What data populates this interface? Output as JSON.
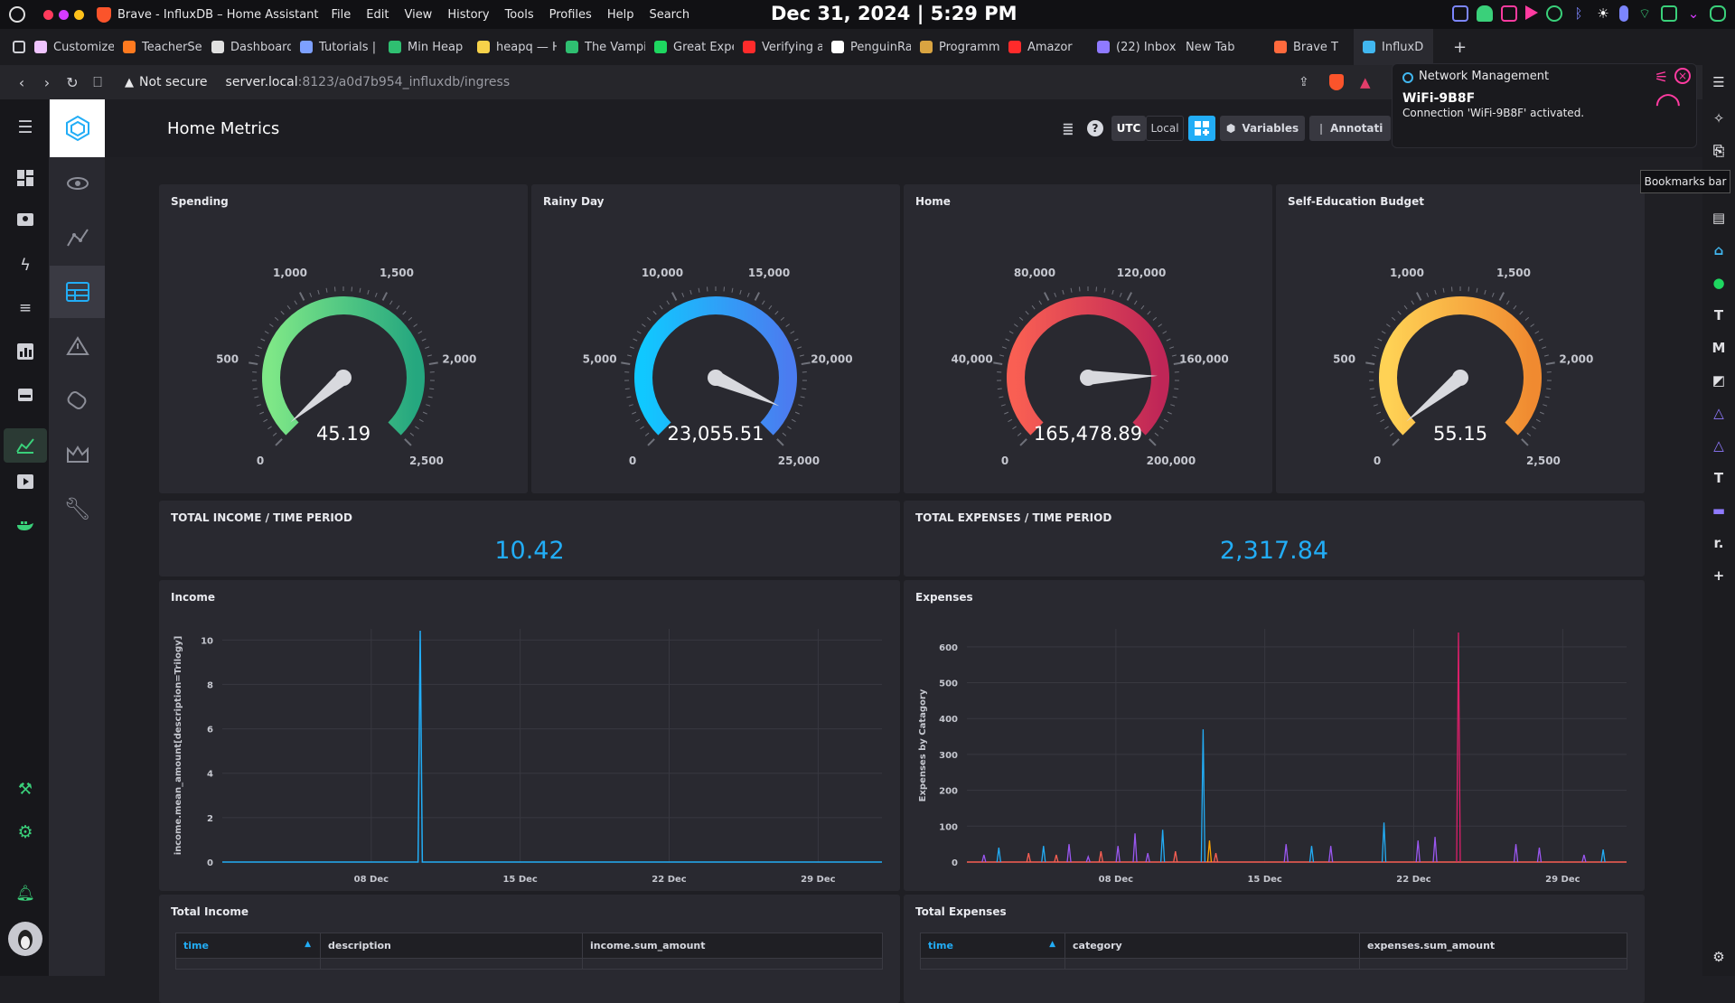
{
  "os": {
    "window_title": "Brave - InfluxDB – Home Assistant",
    "menu": [
      "File",
      "Edit",
      "View",
      "History",
      "Tools",
      "Profiles",
      "Help",
      "Search"
    ],
    "clock": "Dec 31, 2024 | 5:29 PM"
  },
  "tabs": [
    {
      "label": "Customize",
      "color": "#f0c4ff"
    },
    {
      "label": "TeacherSe",
      "color": "#ff7a1f"
    },
    {
      "label": "Dashboard",
      "color": "#e0e0e0"
    },
    {
      "label": "Tutorials |",
      "color": "#7da0ff"
    },
    {
      "label": "Min Heap",
      "color": "#2fbf71"
    },
    {
      "label": "heapq — H",
      "color": "#f7d24a"
    },
    {
      "label": "The Vampi",
      "color": "#2fbf71"
    },
    {
      "label": "Great Expe",
      "color": "#1ed760"
    },
    {
      "label": "Verifying a",
      "color": "#ff2b2b"
    },
    {
      "label": "PenguinRa",
      "color": "#ffffff"
    },
    {
      "label": "Programm",
      "color": "#d9a441"
    },
    {
      "label": "Amazor",
      "color": "#ff2b2b"
    },
    {
      "label": "(22) Inbox",
      "color": "#8f7aff"
    },
    {
      "label": "New Tab",
      "color": ""
    },
    {
      "label": "Brave T",
      "color": "#ff6a3d"
    },
    {
      "label": "InfluxD",
      "color": "#41b7f0"
    }
  ],
  "address": {
    "security": "Not secure",
    "host": "server.local",
    "path": ":8123/a0d7b954_influxdb/ingress"
  },
  "notification": {
    "app": "Network Management",
    "title": "WiFi-9B8F",
    "body": "Connection 'WiFi-9B8F' activated."
  },
  "tooltip": "Bookmarks bar",
  "dashboard": {
    "title": "Home Metrics",
    "buttons": {
      "utc": "UTC",
      "local": "Local",
      "variables": "Variables",
      "annotations": "Annotati"
    }
  },
  "gauges": [
    {
      "title": "Spending",
      "value_text": "45.19",
      "value": 45.19,
      "min": 0,
      "max": 2500,
      "ticks": [
        "0",
        "500",
        "1,000",
        "1,500",
        "2,000",
        "2,500"
      ],
      "colors": [
        "#7ee787",
        "#25a77f"
      ]
    },
    {
      "title": "Rainy Day",
      "value_text": "23,055.51",
      "value": 23055.51,
      "min": 0,
      "max": 25000,
      "ticks": [
        "0",
        "5,000",
        "10,000",
        "15,000",
        "20,000",
        "25,000"
      ],
      "colors": [
        "#10c8ff",
        "#4b7cf0"
      ]
    },
    {
      "title": "Home",
      "value_text": "165,478.89",
      "value": 165478.89,
      "min": 0,
      "max": 200000,
      "ticks": [
        "0",
        "40,000",
        "80,000",
        "120,000",
        "160,000",
        "200,000"
      ],
      "colors": [
        "#f95f53",
        "#bf2657"
      ]
    },
    {
      "title": "Self-Education Budget",
      "value_text": "55.15",
      "value": 55.15,
      "min": 0,
      "max": 2500,
      "ticks": [
        "0",
        "500",
        "1,000",
        "1,500",
        "2,000",
        "2,500"
      ],
      "colors": [
        "#ffd255",
        "#f08a30"
      ]
    }
  ],
  "singlestats": [
    {
      "title": "TOTAL INCOME / TIME PERIOD",
      "value": "10.42"
    },
    {
      "title": "TOTAL EXPENSES / TIME PERIOD",
      "value": "2,317.84"
    }
  ],
  "chart_data": [
    {
      "type": "line",
      "title": "Income",
      "ylabel": "income.mean_amount[description=Trilogy]",
      "xlabel": "",
      "x_ticks": [
        "08 Dec",
        "15 Dec",
        "22 Dec",
        "29 Dec"
      ],
      "y_ticks": [
        "0",
        "2",
        "4",
        "6",
        "8",
        "10"
      ],
      "ylim": [
        0,
        10.5
      ],
      "xlim_days": [
        1,
        32
      ],
      "series": [
        {
          "color": "#22adf6",
          "points": [
            [
              1,
              0
            ],
            [
              10.2,
              0
            ],
            [
              10.3,
              10.42
            ],
            [
              10.4,
              0
            ],
            [
              32,
              0
            ]
          ]
        }
      ]
    },
    {
      "type": "line",
      "title": "Expenses",
      "ylabel": "Expenses by Catagory",
      "xlabel": "",
      "x_ticks": [
        "08 Dec",
        "15 Dec",
        "22 Dec",
        "29 Dec"
      ],
      "y_ticks": [
        "0",
        "100",
        "200",
        "300",
        "400",
        "500",
        "600"
      ],
      "ylim": [
        0,
        650
      ],
      "xlim_days": [
        1,
        32
      ],
      "spikes": [
        {
          "day": 1.8,
          "value": 20,
          "color": "#9a57f0"
        },
        {
          "day": 2.5,
          "value": 40,
          "color": "#22adf6"
        },
        {
          "day": 3.9,
          "value": 25,
          "color": "#f95f53"
        },
        {
          "day": 4.6,
          "value": 45,
          "color": "#22adf6"
        },
        {
          "day": 5.2,
          "value": 20,
          "color": "#f95f53"
        },
        {
          "day": 5.8,
          "value": 50,
          "color": "#9a57f0"
        },
        {
          "day": 6.7,
          "value": 15,
          "color": "#9a57f0"
        },
        {
          "day": 7.3,
          "value": 30,
          "color": "#f95f53"
        },
        {
          "day": 8.1,
          "value": 45,
          "color": "#9a57f0"
        },
        {
          "day": 8.9,
          "value": 80,
          "color": "#9a57f0"
        },
        {
          "day": 9.5,
          "value": 25,
          "color": "#9a57f0"
        },
        {
          "day": 10.2,
          "value": 90,
          "color": "#22adf6"
        },
        {
          "day": 10.8,
          "value": 30,
          "color": "#f95f53"
        },
        {
          "day": 12.1,
          "value": 370,
          "color": "#22adf6"
        },
        {
          "day": 12.4,
          "value": 60,
          "color": "#ffa500"
        },
        {
          "day": 12.7,
          "value": 25,
          "color": "#f95f53"
        },
        {
          "day": 16.0,
          "value": 50,
          "color": "#9a57f0"
        },
        {
          "day": 17.2,
          "value": 45,
          "color": "#22adf6"
        },
        {
          "day": 18.1,
          "value": 45,
          "color": "#9a57f0"
        },
        {
          "day": 20.6,
          "value": 110,
          "color": "#22adf6"
        },
        {
          "day": 22.2,
          "value": 60,
          "color": "#9a57f0"
        },
        {
          "day": 23.0,
          "value": 70,
          "color": "#9a57f0"
        },
        {
          "day": 24.1,
          "value": 640,
          "color": "#dc1f6a"
        },
        {
          "day": 26.8,
          "value": 50,
          "color": "#9a57f0"
        },
        {
          "day": 27.9,
          "value": 40,
          "color": "#9a57f0"
        },
        {
          "day": 30.0,
          "value": 20,
          "color": "#9a57f0"
        },
        {
          "day": 30.9,
          "value": 35,
          "color": "#22adf6"
        }
      ]
    }
  ],
  "tables": [
    {
      "title": "Total Income",
      "columns": [
        "time",
        "description",
        "income.sum_amount"
      ]
    },
    {
      "title": "Total Expenses",
      "columns": [
        "time",
        "category",
        "expenses.sum_amount"
      ]
    }
  ]
}
